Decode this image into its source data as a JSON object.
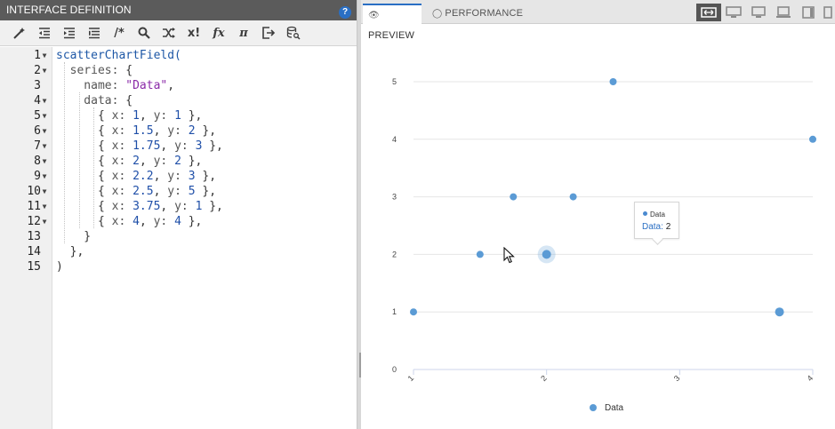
{
  "left_panel": {
    "title": "INTERFACE DEFINITION",
    "toolbar": [
      {
        "name": "magic-wand-icon",
        "glyph": "wand"
      },
      {
        "name": "outdent-icon",
        "glyph": "outdent"
      },
      {
        "name": "indent-icon",
        "glyph": "indent"
      },
      {
        "name": "format-list-icon",
        "glyph": "list"
      },
      {
        "name": "comment-icon",
        "glyph": "/*"
      },
      {
        "name": "search-icon",
        "glyph": "search"
      },
      {
        "name": "shuffle-icon",
        "glyph": "shuffle"
      },
      {
        "name": "x-factorial-icon",
        "glyph": "x!"
      },
      {
        "name": "function-icon",
        "glyph": "fx"
      },
      {
        "name": "pi-icon",
        "glyph": "π"
      },
      {
        "name": "export-icon",
        "glyph": "export"
      },
      {
        "name": "database-search-icon",
        "glyph": "db"
      }
    ],
    "help_label": "?",
    "line_numbers": [
      "1",
      "2",
      "3",
      "4",
      "5",
      "6",
      "7",
      "8",
      "9",
      "10",
      "11",
      "12",
      "13",
      "14",
      "15"
    ],
    "fold_markers": [
      true,
      true,
      false,
      true,
      true,
      true,
      true,
      true,
      true,
      true,
      true,
      true,
      false,
      false,
      false
    ],
    "code": [
      [
        {
          "t": "fn",
          "v": "scatterChartField("
        }
      ],
      [
        {
          "t": "key",
          "v": "  series: "
        },
        {
          "t": "pun",
          "v": "{"
        }
      ],
      [
        {
          "t": "key",
          "v": "    name: "
        },
        {
          "t": "str",
          "v": "\"Data\""
        },
        {
          "t": "pun",
          "v": ","
        }
      ],
      [
        {
          "t": "key",
          "v": "    data: "
        },
        {
          "t": "pun",
          "v": "{"
        }
      ],
      [
        {
          "t": "pun",
          "v": "      { "
        },
        {
          "t": "key",
          "v": "x: "
        },
        {
          "t": "num",
          "v": "1"
        },
        {
          "t": "pun",
          "v": ", "
        },
        {
          "t": "key",
          "v": "y: "
        },
        {
          "t": "num",
          "v": "1"
        },
        {
          "t": "pun",
          "v": " },"
        }
      ],
      [
        {
          "t": "pun",
          "v": "      { "
        },
        {
          "t": "key",
          "v": "x: "
        },
        {
          "t": "num",
          "v": "1.5"
        },
        {
          "t": "pun",
          "v": ", "
        },
        {
          "t": "key",
          "v": "y: "
        },
        {
          "t": "num",
          "v": "2"
        },
        {
          "t": "pun",
          "v": " },"
        }
      ],
      [
        {
          "t": "pun",
          "v": "      { "
        },
        {
          "t": "key",
          "v": "x: "
        },
        {
          "t": "num",
          "v": "1.75"
        },
        {
          "t": "pun",
          "v": ", "
        },
        {
          "t": "key",
          "v": "y: "
        },
        {
          "t": "num",
          "v": "3"
        },
        {
          "t": "pun",
          "v": " },"
        }
      ],
      [
        {
          "t": "pun",
          "v": "      { "
        },
        {
          "t": "key",
          "v": "x: "
        },
        {
          "t": "num",
          "v": "2"
        },
        {
          "t": "pun",
          "v": ", "
        },
        {
          "t": "key",
          "v": "y: "
        },
        {
          "t": "num",
          "v": "2"
        },
        {
          "t": "pun",
          "v": " },"
        }
      ],
      [
        {
          "t": "pun",
          "v": "      { "
        },
        {
          "t": "key",
          "v": "x: "
        },
        {
          "t": "num",
          "v": "2.2"
        },
        {
          "t": "pun",
          "v": ", "
        },
        {
          "t": "key",
          "v": "y: "
        },
        {
          "t": "num",
          "v": "3"
        },
        {
          "t": "pun",
          "v": " },"
        }
      ],
      [
        {
          "t": "pun",
          "v": "      { "
        },
        {
          "t": "key",
          "v": "x: "
        },
        {
          "t": "num",
          "v": "2.5"
        },
        {
          "t": "pun",
          "v": ", "
        },
        {
          "t": "key",
          "v": "y: "
        },
        {
          "t": "num",
          "v": "5"
        },
        {
          "t": "pun",
          "v": " },"
        }
      ],
      [
        {
          "t": "pun",
          "v": "      { "
        },
        {
          "t": "key",
          "v": "x: "
        },
        {
          "t": "num",
          "v": "3.75"
        },
        {
          "t": "pun",
          "v": ", "
        },
        {
          "t": "key",
          "v": "y: "
        },
        {
          "t": "num",
          "v": "1"
        },
        {
          "t": "pun",
          "v": " },"
        }
      ],
      [
        {
          "t": "pun",
          "v": "      { "
        },
        {
          "t": "key",
          "v": "x: "
        },
        {
          "t": "num",
          "v": "4"
        },
        {
          "t": "pun",
          "v": ", "
        },
        {
          "t": "key",
          "v": "y: "
        },
        {
          "t": "num",
          "v": "4"
        },
        {
          "t": "pun",
          "v": " },"
        }
      ],
      [
        {
          "t": "pun",
          "v": "    }"
        }
      ],
      [
        {
          "t": "pun",
          "v": "  },"
        }
      ],
      [
        {
          "t": "pun",
          "v": ")"
        }
      ]
    ]
  },
  "right_panel": {
    "tabs": [
      {
        "id": "preview",
        "label": "PREVIEW",
        "icon": "eye-icon",
        "active": true
      },
      {
        "id": "performance",
        "label": "PERFORMANCE",
        "icon": "gauge-icon",
        "active": false
      }
    ],
    "device_buttons": [
      "fit-width-icon",
      "desktop-icon",
      "monitor-icon",
      "laptop-icon",
      "tablet-icon",
      "phone-icon"
    ],
    "tooltip": {
      "series_name": "Data",
      "label": "Data:",
      "value": "2"
    }
  },
  "chart_data": {
    "type": "scatter",
    "series": [
      {
        "name": "Data",
        "color": "#5b9bd5",
        "points": [
          {
            "x": 1,
            "y": 1
          },
          {
            "x": 1.5,
            "y": 2
          },
          {
            "x": 1.75,
            "y": 3
          },
          {
            "x": 2,
            "y": 2
          },
          {
            "x": 2.2,
            "y": 3
          },
          {
            "x": 2.5,
            "y": 5
          },
          {
            "x": 3.75,
            "y": 1
          },
          {
            "x": 4,
            "y": 4
          }
        ]
      }
    ],
    "hovered_point_index": 3,
    "x_ticks": [
      "1",
      "2",
      "3",
      "4"
    ],
    "y_ticks": [
      "0",
      "1",
      "2",
      "3",
      "4",
      "5"
    ],
    "xlim": [
      1,
      4
    ],
    "ylim": [
      0,
      5
    ],
    "grid": "horizontal",
    "legend_placement": "bottom-center",
    "legend": [
      "Data"
    ]
  }
}
